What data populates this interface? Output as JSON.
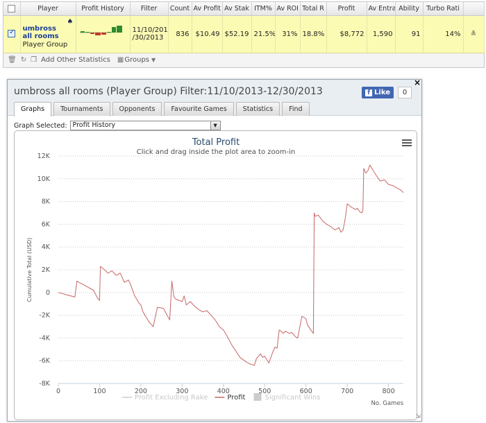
{
  "stats": {
    "headers": [
      "Player",
      "Profit History",
      "Filter",
      "Count",
      "Av Profit",
      "Av Stak",
      "ITM%",
      "Av ROI",
      "Total R",
      "Profit",
      "Av Entra",
      "Ability",
      "Turbo Rati"
    ],
    "row": {
      "player_name": "umbross all rooms",
      "player_type": "Player Group",
      "filter": "11/10/201 /30/2013",
      "count": "836",
      "av_profit": "$10.49",
      "av_stake": "$52.19",
      "itm": "21.5%",
      "av_roi": "31%",
      "total_roi": "18.8%",
      "profit": "$8,772",
      "av_entrants": "1,590",
      "ability": "91",
      "turbo_ratio": "14%",
      "row_action": "≚"
    },
    "toolbar": {
      "add_other": "Add Other Statistics",
      "groups": "Groups"
    }
  },
  "dialog": {
    "title": "umbross all rooms (Player Group) Filter:11/10/2013-12/30/2013",
    "fb_like": "Like",
    "fb_count": "0",
    "close": "×",
    "tabs": [
      "Graphs",
      "Tournaments",
      "Opponents",
      "Favourite Games",
      "Statistics",
      "Find"
    ],
    "active_tab": "Graphs",
    "graph_selected_label": "Graph Selected:",
    "graph_selected_value": "Profit History"
  },
  "chart_data": {
    "type": "line",
    "title": "Total Profit",
    "subtitle": "Click and drag inside the plot area to zoom-in",
    "xlabel": "No. Games",
    "ylabel": "Cumulative Total (USD)",
    "xlim": [
      0,
      836
    ],
    "ylim": [
      -8000,
      12000
    ],
    "x_ticks": [
      0,
      100,
      200,
      300,
      400,
      500,
      600,
      700,
      800
    ],
    "y_ticks": [
      -8000,
      -6000,
      -4000,
      -2000,
      0,
      2000,
      4000,
      6000,
      8000,
      10000,
      12000
    ],
    "y_tick_labels": [
      "-8K",
      "-6K",
      "-4K",
      "-2K",
      "0",
      "2K",
      "4K",
      "6K",
      "8K",
      "10K",
      "12K"
    ],
    "grid": "horizontal dotted",
    "legend_position": "bottom-center",
    "legend": [
      {
        "name": "Profit Excluding Rake",
        "color": "#cccccc",
        "kind": "line",
        "visible": false
      },
      {
        "name": "Profit",
        "color": "#c76565",
        "kind": "line",
        "visible": true
      },
      {
        "name": "Significant Wins",
        "color": "#cccccc",
        "kind": "box",
        "visible": false
      }
    ],
    "series": [
      {
        "name": "Profit",
        "color": "#c76565",
        "x": [
          0,
          20,
          40,
          45,
          55,
          70,
          85,
          95,
          100,
          102,
          115,
          120,
          130,
          140,
          150,
          160,
          170,
          175,
          185,
          190,
          195,
          200,
          205,
          210,
          215,
          220,
          230,
          240,
          255,
          262,
          265,
          270,
          275,
          280,
          285,
          300,
          305,
          310,
          320,
          330,
          340,
          350,
          360,
          370,
          380,
          390,
          400,
          410,
          420,
          440,
          455,
          465,
          475,
          480,
          485,
          490,
          495,
          500,
          510,
          520,
          525,
          530,
          535,
          540,
          545,
          550,
          560,
          565,
          570,
          575,
          580,
          590,
          600,
          603,
          610,
          618,
          620,
          622,
          630,
          640,
          650,
          660,
          670,
          680,
          685,
          690,
          695,
          700,
          710,
          720,
          725,
          730,
          735,
          738,
          740,
          745,
          750,
          755,
          760,
          770,
          780,
          790,
          800,
          810,
          820,
          830,
          836
        ],
        "y": [
          0,
          -200,
          -400,
          1000,
          800,
          500,
          200,
          -500,
          -700,
          2300,
          1900,
          1700,
          1900,
          1500,
          1700,
          900,
          1100,
          700,
          -300,
          -600,
          -900,
          -1100,
          -1700,
          -2000,
          -2300,
          -2600,
          -3000,
          -1300,
          -1400,
          -1900,
          -2100,
          -2400,
          1000,
          -400,
          -600,
          -800,
          -300,
          -1100,
          -800,
          -1200,
          -1500,
          -1700,
          -1600,
          -2000,
          -2400,
          -3000,
          -3300,
          -3900,
          -4600,
          -5700,
          -6100,
          -6300,
          -6400,
          -5800,
          -5600,
          -5400,
          -5700,
          -5600,
          -6200,
          -5200,
          -4800,
          -4900,
          -3300,
          -3400,
          -3600,
          -3400,
          -3600,
          -3500,
          -3700,
          -3900,
          -4000,
          -2100,
          -2300,
          -2800,
          -3200,
          -3600,
          7000,
          6700,
          6800,
          6300,
          6000,
          5800,
          5500,
          5700,
          5300,
          5500,
          6500,
          7800,
          7500,
          7300,
          7400,
          7100,
          7000,
          7200,
          10900,
          10500,
          10700,
          11200,
          10900,
          10300,
          9800,
          9900,
          9500,
          9400,
          9200,
          9000,
          8772
        ]
      }
    ]
  }
}
